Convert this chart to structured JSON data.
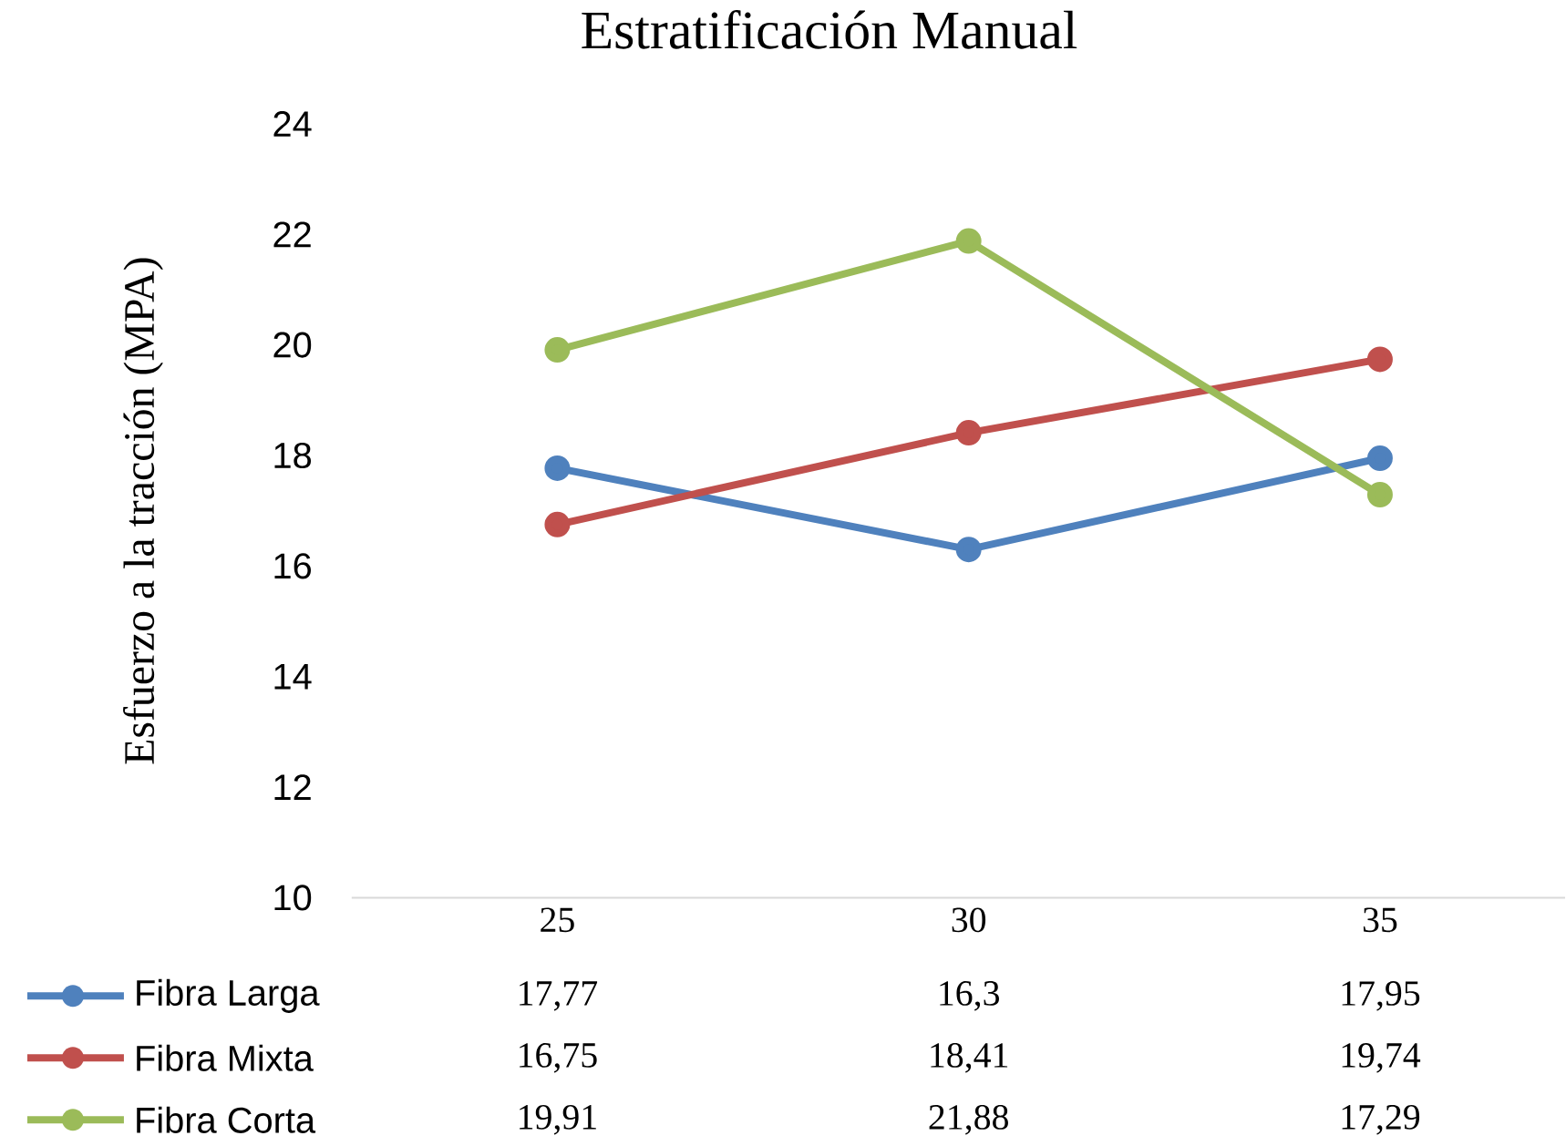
{
  "chart_data": {
    "type": "line",
    "title": "Estratificación Manual",
    "ylabel": "Esfuerzo a la tracción (MPA)",
    "categories": [
      "25",
      "30",
      "35"
    ],
    "series": [
      {
        "name": "Fibra Larga",
        "color": "#4f81bd",
        "values": [
          17.77,
          16.3,
          17.95
        ],
        "value_labels": [
          "17,77",
          "16,3",
          "17,95"
        ]
      },
      {
        "name": "Fibra Mixta",
        "color": "#c0504d",
        "values": [
          16.75,
          18.41,
          19.74
        ],
        "value_labels": [
          "16,75",
          "18,41",
          "19,74"
        ]
      },
      {
        "name": "Fibra Corta",
        "color": "#9bbb59",
        "values": [
          19.91,
          21.88,
          17.29
        ],
        "value_labels": [
          "19,91",
          "21,88",
          "17,29"
        ]
      }
    ],
    "ylim": [
      10,
      24
    ],
    "yticks": [
      10,
      12,
      14,
      16,
      18,
      20,
      22,
      24
    ],
    "grid": false,
    "legend": "bottom",
    "marker": "circle",
    "line_style": "solid"
  }
}
